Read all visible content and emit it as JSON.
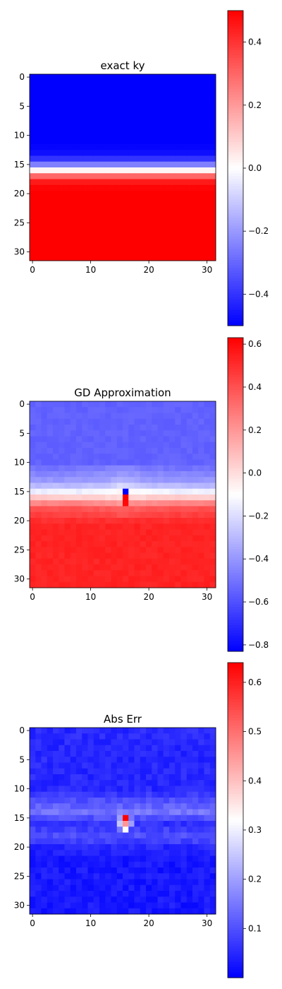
{
  "chart_data": [
    {
      "type": "heatmap",
      "title": "exact ky",
      "grid_size": 32,
      "x_ticks": [
        0,
        10,
        20,
        30
      ],
      "y_ticks": [
        0,
        5,
        10,
        15,
        20,
        25,
        30
      ],
      "colormap": [
        "#0000ff",
        "#ffffff",
        "#ff0000"
      ],
      "colorbar": {
        "range": [
          -0.5,
          0.5
        ],
        "ticks": [
          -0.4,
          -0.2,
          0.0,
          0.2,
          0.4
        ],
        "tick_labels": [
          "−0.4",
          "−0.2",
          "0.0",
          "0.2",
          "0.4"
        ]
      },
      "row_profile": [
        -0.5,
        -0.5,
        -0.5,
        -0.5,
        -0.5,
        -0.5,
        -0.5,
        -0.5,
        -0.5,
        -0.5,
        -0.5,
        -0.5,
        -0.49,
        -0.47,
        -0.4,
        -0.25,
        0.02,
        0.3,
        0.45,
        0.49,
        0.5,
        0.5,
        0.5,
        0.5,
        0.5,
        0.5,
        0.5,
        0.5,
        0.5,
        0.5,
        0.5,
        0.5
      ]
    },
    {
      "type": "heatmap",
      "title": "GD Approximation",
      "grid_size": 32,
      "x_ticks": [
        0,
        10,
        20,
        30
      ],
      "y_ticks": [
        0,
        5,
        10,
        15,
        20,
        25,
        30
      ],
      "colormap": [
        "#0000ff",
        "#ffffff",
        "#ff0000"
      ],
      "colorbar": {
        "range": [
          -0.83,
          0.63
        ],
        "ticks": [
          -0.8,
          -0.6,
          -0.4,
          -0.2,
          0.0,
          0.2,
          0.4,
          0.6
        ],
        "tick_labels": [
          "−0.8",
          "−0.6",
          "−0.4",
          "−0.2",
          "0.0",
          "0.2",
          "0.4",
          "0.6"
        ]
      },
      "row_profile": [
        -0.55,
        -0.55,
        -0.55,
        -0.55,
        -0.55,
        -0.55,
        -0.55,
        -0.55,
        -0.55,
        -0.55,
        -0.55,
        -0.5,
        -0.45,
        -0.4,
        -0.3,
        -0.15,
        0.05,
        0.25,
        0.4,
        0.45,
        0.5,
        0.53,
        0.53,
        0.53,
        0.53,
        0.53,
        0.53,
        0.53,
        0.53,
        0.53,
        0.53,
        0.53
      ],
      "center_anomalies": [
        {
          "row": 14,
          "col": 15,
          "value": -0.2
        },
        {
          "row": 15,
          "col": 16,
          "value": -0.83
        },
        {
          "row": 16,
          "col": 16,
          "value": 0.63
        },
        {
          "row": 17,
          "col": 16,
          "value": 0.6
        }
      ]
    },
    {
      "type": "heatmap",
      "title": "Abs Err",
      "grid_size": 32,
      "x_ticks": [
        0,
        10,
        20,
        30
      ],
      "y_ticks": [
        0,
        5,
        10,
        15,
        20,
        25,
        30
      ],
      "colormap": [
        "#0000ff",
        "#ffffff",
        "#ff0000"
      ],
      "colorbar": {
        "range": [
          0.0,
          0.64
        ],
        "ticks": [
          0.1,
          0.2,
          0.3,
          0.4,
          0.5,
          0.6
        ],
        "tick_labels": [
          "0.1",
          "0.2",
          "0.3",
          "0.4",
          "0.5",
          "0.6"
        ]
      },
      "row_profile": [
        0.05,
        0.05,
        0.05,
        0.05,
        0.05,
        0.05,
        0.05,
        0.05,
        0.05,
        0.05,
        0.05,
        0.07,
        0.1,
        0.12,
        0.15,
        0.1,
        0.06,
        0.08,
        0.1,
        0.08,
        0.05,
        0.04,
        0.03,
        0.03,
        0.03,
        0.03,
        0.03,
        0.03,
        0.03,
        0.03,
        0.03,
        0.03
      ],
      "center_anomalies": [
        {
          "row": 15,
          "col": 16,
          "value": 0.64
        },
        {
          "row": 16,
          "col": 16,
          "value": 0.45
        },
        {
          "row": 17,
          "col": 16,
          "value": 0.32
        },
        {
          "row": 15,
          "col": 15,
          "value": 0.2
        },
        {
          "row": 16,
          "col": 15,
          "value": 0.25
        },
        {
          "row": 17,
          "col": 15,
          "value": 0.15
        },
        {
          "row": 16,
          "col": 17,
          "value": 0.2
        },
        {
          "row": 15,
          "col": 17,
          "value": 0.15
        },
        {
          "row": 14,
          "col": 13,
          "value": 0.12
        },
        {
          "row": 18,
          "col": 18,
          "value": 0.12
        }
      ]
    }
  ]
}
